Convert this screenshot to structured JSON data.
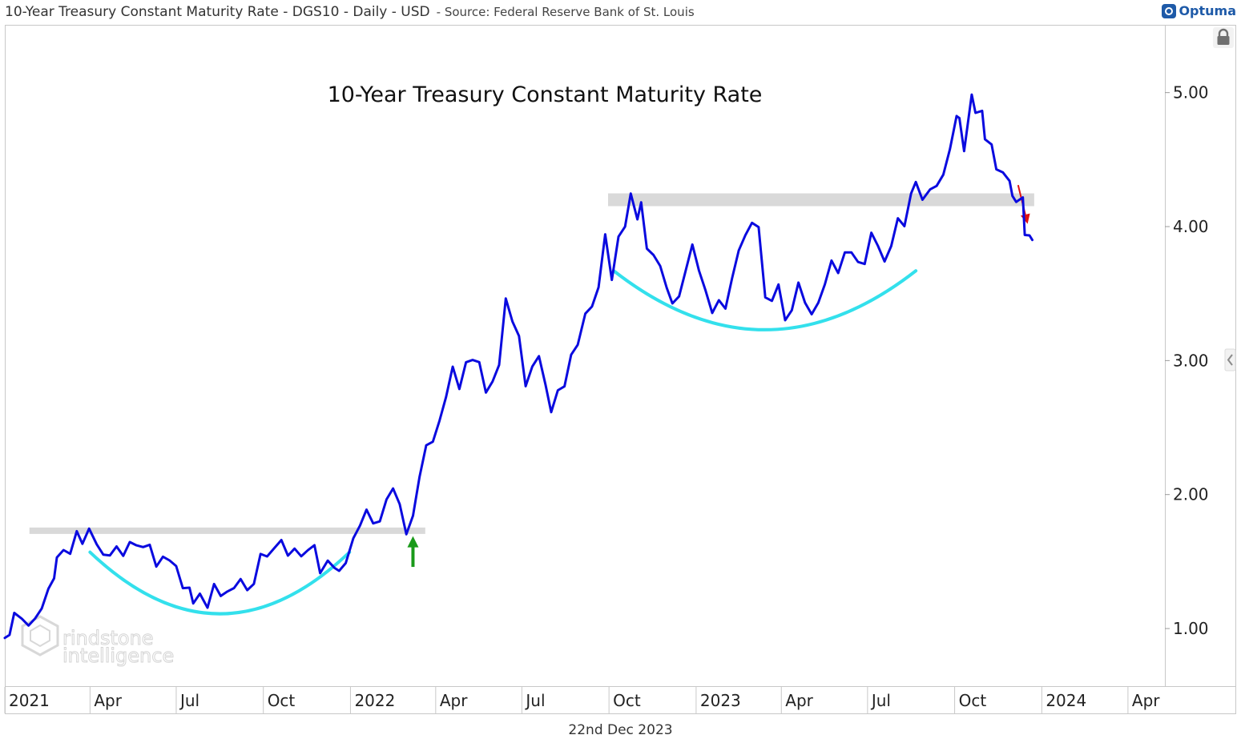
{
  "header": {
    "title": "10-Year Treasury Constant Maturity Rate - DGS10 - Daily - USD",
    "source": "- Source: Federal Reserve Bank of St. Louis",
    "logo": "Optuma"
  },
  "footer": {
    "date": "22nd Dec 2023"
  },
  "watermark": {
    "line1": "rindstone",
    "line2": "intelligence"
  },
  "icons": {
    "lock": "lock-icon",
    "collapse": "chevron-left-icon"
  },
  "colors": {
    "line": "#0a0adf",
    "support": "#d9d9d9",
    "cup": "#33e0ec",
    "up_arrow": "#1a9a1a",
    "down_arrow": "#e01010"
  },
  "chart_data": {
    "type": "line",
    "title": "10-Year Treasury Constant Maturity Rate",
    "xlabel": "",
    "ylabel": "",
    "ylim": [
      0.57,
      5.5
    ],
    "yticks": [
      "1.00",
      "2.00",
      "3.00",
      "4.00",
      "5.00"
    ],
    "xticks": [
      "2021",
      "Apr",
      "Jul",
      "Oct",
      "2022",
      "Apr",
      "Jul",
      "Oct",
      "2023",
      "Apr",
      "Jul",
      "Oct",
      "2024",
      "Apr"
    ],
    "grid": false,
    "series": [
      {
        "values": [
          [
            "2021-01-01",
            0.93
          ],
          [
            "2021-01-06",
            0.96
          ],
          [
            "2021-01-11",
            1.13
          ],
          [
            "2021-01-19",
            1.09
          ],
          [
            "2021-01-26",
            1.04
          ],
          [
            "2021-02-02",
            1.09
          ],
          [
            "2021-02-09",
            1.16
          ],
          [
            "2021-02-16",
            1.3
          ],
          [
            "2021-02-22",
            1.37
          ],
          [
            "2021-02-25",
            1.52
          ],
          [
            "2021-03-04",
            1.57
          ],
          [
            "2021-03-11",
            1.54
          ],
          [
            "2021-03-18",
            1.71
          ],
          [
            "2021-03-24",
            1.62
          ],
          [
            "2021-03-31",
            1.74
          ],
          [
            "2021-04-08",
            1.63
          ],
          [
            "2021-04-15",
            1.56
          ],
          [
            "2021-04-22",
            1.56
          ],
          [
            "2021-04-29",
            1.63
          ],
          [
            "2021-05-06",
            1.56
          ],
          [
            "2021-05-13",
            1.66
          ],
          [
            "2021-05-20",
            1.63
          ],
          [
            "2021-05-27",
            1.61
          ],
          [
            "2021-06-03",
            1.62
          ],
          [
            "2021-06-10",
            1.45
          ],
          [
            "2021-06-17",
            1.52
          ],
          [
            "2021-06-24",
            1.49
          ],
          [
            "2021-07-01",
            1.45
          ],
          [
            "2021-07-08",
            1.29
          ],
          [
            "2021-07-15",
            1.3
          ],
          [
            "2021-07-19",
            1.19
          ],
          [
            "2021-07-26",
            1.27
          ],
          [
            "2021-08-03",
            1.17
          ],
          [
            "2021-08-10",
            1.35
          ],
          [
            "2021-08-17",
            1.26
          ],
          [
            "2021-08-24",
            1.29
          ],
          [
            "2021-08-31",
            1.31
          ],
          [
            "2021-09-07",
            1.37
          ],
          [
            "2021-09-14",
            1.28
          ],
          [
            "2021-09-21",
            1.32
          ],
          [
            "2021-09-28",
            1.54
          ],
          [
            "2021-10-05",
            1.52
          ],
          [
            "2021-10-12",
            1.58
          ],
          [
            "2021-10-20",
            1.65
          ],
          [
            "2021-10-27",
            1.54
          ],
          [
            "2021-11-03",
            1.6
          ],
          [
            "2021-11-10",
            1.55
          ],
          [
            "2021-11-17",
            1.6
          ],
          [
            "2021-11-24",
            1.64
          ],
          [
            "2021-11-30",
            1.43
          ],
          [
            "2021-12-08",
            1.52
          ],
          [
            "2021-12-15",
            1.46
          ],
          [
            "2021-12-20",
            1.43
          ],
          [
            "2021-12-27",
            1.48
          ],
          [
            "2022-01-04",
            1.66
          ],
          [
            "2022-01-11",
            1.75
          ],
          [
            "2022-01-18",
            1.87
          ],
          [
            "2022-01-25",
            1.77
          ],
          [
            "2022-02-01",
            1.79
          ],
          [
            "2022-02-08",
            1.96
          ],
          [
            "2022-02-15",
            2.05
          ],
          [
            "2022-02-22",
            1.94
          ],
          [
            "2022-03-01",
            1.72
          ],
          [
            "2022-03-08",
            1.86
          ],
          [
            "2022-03-15",
            2.15
          ],
          [
            "2022-03-22",
            2.38
          ],
          [
            "2022-03-29",
            2.4
          ],
          [
            "2022-04-05",
            2.55
          ],
          [
            "2022-04-12",
            2.72
          ],
          [
            "2022-04-19",
            2.94
          ],
          [
            "2022-04-26",
            2.77
          ],
          [
            "2022-05-03",
            2.97
          ],
          [
            "2022-05-10",
            2.99
          ],
          [
            "2022-05-17",
            2.98
          ],
          [
            "2022-05-24",
            2.76
          ],
          [
            "2022-05-31",
            2.85
          ],
          [
            "2022-06-07",
            2.98
          ],
          [
            "2022-06-14",
            3.48
          ],
          [
            "2022-06-21",
            3.31
          ],
          [
            "2022-06-28",
            3.2
          ],
          [
            "2022-07-05",
            2.82
          ],
          [
            "2022-07-12",
            2.96
          ],
          [
            "2022-07-19",
            3.03
          ],
          [
            "2022-07-26",
            2.81
          ],
          [
            "2022-08-01",
            2.6
          ],
          [
            "2022-08-08",
            2.76
          ],
          [
            "2022-08-15",
            2.79
          ],
          [
            "2022-08-22",
            3.03
          ],
          [
            "2022-08-29",
            3.11
          ],
          [
            "2022-09-06",
            3.35
          ],
          [
            "2022-09-13",
            3.41
          ],
          [
            "2022-09-20",
            3.56
          ],
          [
            "2022-09-27",
            3.96
          ],
          [
            "2022-10-04",
            3.62
          ],
          [
            "2022-10-11",
            3.94
          ],
          [
            "2022-10-18",
            4.01
          ],
          [
            "2022-10-24",
            4.25
          ],
          [
            "2022-10-31",
            4.05
          ],
          [
            "2022-11-04",
            4.17
          ],
          [
            "2022-11-10",
            3.82
          ],
          [
            "2022-11-17",
            3.77
          ],
          [
            "2022-11-24",
            3.69
          ],
          [
            "2022-12-01",
            3.53
          ],
          [
            "2022-12-07",
            3.42
          ],
          [
            "2022-12-14",
            3.48
          ],
          [
            "2022-12-21",
            3.68
          ],
          [
            "2022-12-28",
            3.88
          ],
          [
            "2023-01-04",
            3.69
          ],
          [
            "2023-01-11",
            3.54
          ],
          [
            "2023-01-18",
            3.37
          ],
          [
            "2023-01-25",
            3.46
          ],
          [
            "2023-02-01",
            3.39
          ],
          [
            "2023-02-08",
            3.61
          ],
          [
            "2023-02-15",
            3.81
          ],
          [
            "2023-02-22",
            3.92
          ],
          [
            "2023-03-01",
            4.01
          ],
          [
            "2023-03-08",
            3.98
          ],
          [
            "2023-03-15",
            3.46
          ],
          [
            "2023-03-22",
            3.44
          ],
          [
            "2023-03-29",
            3.57
          ],
          [
            "2023-04-05",
            3.31
          ],
          [
            "2023-04-12",
            3.39
          ],
          [
            "2023-04-19",
            3.6
          ],
          [
            "2023-04-26",
            3.45
          ],
          [
            "2023-05-03",
            3.36
          ],
          [
            "2023-05-10",
            3.44
          ],
          [
            "2023-05-17",
            3.57
          ],
          [
            "2023-05-24",
            3.74
          ],
          [
            "2023-05-31",
            3.64
          ],
          [
            "2023-06-07",
            3.79
          ],
          [
            "2023-06-14",
            3.79
          ],
          [
            "2023-06-21",
            3.72
          ],
          [
            "2023-06-28",
            3.71
          ],
          [
            "2023-07-05",
            3.95
          ],
          [
            "2023-07-12",
            3.86
          ],
          [
            "2023-07-19",
            3.75
          ],
          [
            "2023-07-26",
            3.87
          ],
          [
            "2023-08-02",
            4.08
          ],
          [
            "2023-08-09",
            4.02
          ],
          [
            "2023-08-16",
            4.26
          ],
          [
            "2023-08-21",
            4.34
          ],
          [
            "2023-08-28",
            4.2
          ],
          [
            "2023-09-05",
            4.27
          ],
          [
            "2023-09-12",
            4.29
          ],
          [
            "2023-09-19",
            4.37
          ],
          [
            "2023-09-26",
            4.56
          ],
          [
            "2023-10-03",
            4.81
          ],
          [
            "2023-10-06",
            4.8
          ],
          [
            "2023-10-11",
            4.56
          ],
          [
            "2023-10-19",
            4.99
          ],
          [
            "2023-10-23",
            4.86
          ],
          [
            "2023-10-30",
            4.88
          ],
          [
            "2023-11-02",
            4.67
          ],
          [
            "2023-11-09",
            4.63
          ],
          [
            "2023-11-14",
            4.44
          ],
          [
            "2023-11-21",
            4.41
          ],
          [
            "2023-11-28",
            4.34
          ],
          [
            "2023-12-01",
            4.22
          ],
          [
            "2023-12-05",
            4.17
          ],
          [
            "2023-12-12",
            4.2
          ],
          [
            "2023-12-14",
            3.92
          ],
          [
            "2023-12-19",
            3.92
          ],
          [
            "2023-12-22",
            3.9
          ]
        ]
      }
    ],
    "annotations": {
      "support_lines": [
        {
          "from": "2021-01-27",
          "to": "2022-03-21",
          "level": 1.73
        },
        {
          "from": "2022-09-30",
          "to": "2023-12-24",
          "level": 4.2
        }
      ],
      "cups": [
        {
          "from": "2021-04-01",
          "to": "2021-12-31",
          "bottom": 1.11,
          "rim": 1.57
        },
        {
          "from": "2022-10-06",
          "to": "2023-08-21",
          "bottom": 3.23,
          "rim": 3.67
        }
      ],
      "up_arrow": {
        "date": "2022-03-08",
        "from": 1.46,
        "to": 1.69
      },
      "down_arrow": {
        "from_date": "2023-12-07",
        "from": 4.31,
        "to_date": "2023-12-17",
        "to": 4.02
      }
    }
  }
}
